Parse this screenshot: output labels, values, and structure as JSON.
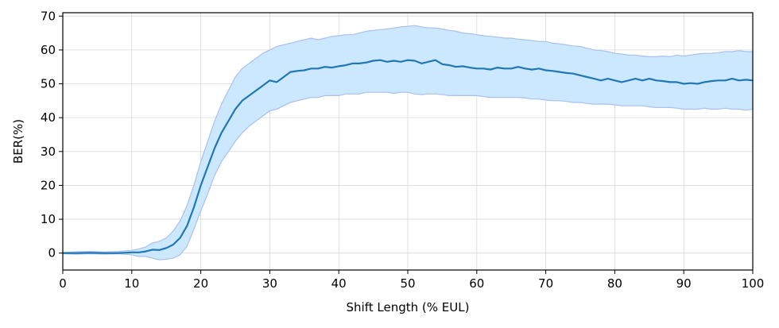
{
  "chart_data": {
    "type": "line",
    "title": "",
    "xlabel": "Shift Length (% EUL)",
    "ylabel": "BER(%)",
    "xlim": [
      0,
      100
    ],
    "ylim": [
      -5,
      71
    ],
    "xticks": [
      0,
      10,
      20,
      30,
      40,
      50,
      60,
      70,
      80,
      90,
      100
    ],
    "yticks": [
      0,
      10,
      20,
      30,
      40,
      50,
      60,
      70
    ],
    "grid": true,
    "legend": "none",
    "colors": {
      "mean_line": "#1f77b4",
      "band_fill": "#cce8ff",
      "band_edge": "#a9bff0"
    },
    "series": [
      {
        "x": [
          0,
          2,
          4,
          6,
          8,
          10,
          11,
          12,
          13,
          14,
          15,
          16,
          17,
          18,
          19,
          20,
          21,
          22,
          23,
          24,
          25,
          26,
          27,
          28,
          29,
          30,
          31,
          32,
          33,
          34,
          35,
          36,
          37,
          38,
          39,
          40,
          41,
          42,
          43,
          44,
          45,
          46,
          47,
          48,
          49,
          50,
          51,
          52,
          53,
          54,
          55,
          56,
          57,
          58,
          59,
          60,
          61,
          62,
          63,
          64,
          65,
          66,
          67,
          68,
          69,
          70,
          71,
          72,
          73,
          74,
          75,
          76,
          77,
          78,
          79,
          80,
          81,
          82,
          83,
          84,
          85,
          86,
          87,
          88,
          89,
          90,
          91,
          92,
          93,
          94,
          95,
          96,
          97,
          98,
          99,
          100
        ],
        "mean": [
          0,
          0,
          0.1,
          0,
          0,
          0.2,
          0.2,
          0.5,
          1,
          0.9,
          1.5,
          2.5,
          4.5,
          8,
          13.5,
          20,
          25.5,
          31,
          35.5,
          39,
          42.5,
          45,
          46.5,
          48,
          49.5,
          51,
          50.5,
          52,
          53.5,
          53.8,
          54,
          54.5,
          54.5,
          55,
          54.8,
          55.2,
          55.5,
          56,
          56,
          56.3,
          56.8,
          57,
          56.5,
          56.8,
          56.5,
          57,
          56.8,
          56,
          56.5,
          57,
          55.8,
          55.5,
          55,
          55.2,
          54.8,
          54.5,
          54.5,
          54.2,
          54.8,
          54.5,
          54.5,
          55,
          54.5,
          54.2,
          54.5,
          54,
          53.8,
          53.5,
          53.2,
          53,
          52.5,
          52,
          51.5,
          51,
          51.5,
          51,
          50.5,
          51,
          51.5,
          51,
          51.5,
          51,
          50.8,
          50.5,
          50.5,
          50,
          50.2,
          50,
          50.5,
          50.8,
          51,
          51,
          51.5,
          51,
          51.2,
          51
        ],
        "upper": [
          0.2,
          0.4,
          0.5,
          0.3,
          0.5,
          0.8,
          1.2,
          1.8,
          3,
          3.5,
          4.5,
          6.5,
          9.5,
          14,
          20,
          27,
          33,
          39,
          44,
          48,
          52,
          54.5,
          56,
          57.5,
          59,
          60,
          61,
          61.5,
          62,
          62.5,
          63,
          63.5,
          63,
          63.5,
          64,
          64.2,
          64.5,
          64.5,
          65,
          65.5,
          65.8,
          66,
          66.2,
          66.5,
          66.8,
          67,
          67.2,
          66.8,
          66.5,
          66.5,
          66.2,
          65.8,
          65.5,
          65,
          64.8,
          64.5,
          64.2,
          64,
          63.8,
          63.5,
          63.5,
          63.2,
          63,
          62.8,
          62.5,
          62.5,
          62,
          61.8,
          61.5,
          61.2,
          61,
          60.5,
          60,
          59.8,
          59.5,
          59,
          58.8,
          58.5,
          58.5,
          58.2,
          58,
          58,
          58.2,
          58,
          58.5,
          58.2,
          58.5,
          58.8,
          59,
          59,
          59.2,
          59.5,
          59.5,
          59.8,
          59.5,
          59.5
        ],
        "lower": [
          -0.2,
          -0.3,
          -0.2,
          -0.3,
          -0.2,
          -0.5,
          -1,
          -1,
          -1.5,
          -2,
          -1.8,
          -1.5,
          -0.5,
          2,
          7,
          12.5,
          17.5,
          23,
          27,
          30,
          33,
          35.5,
          37.5,
          39,
          40.5,
          42,
          42.5,
          43.5,
          44.5,
          45,
          45.5,
          46,
          46,
          46.5,
          46.5,
          46.5,
          47,
          47,
          47,
          47.5,
          47.5,
          47.5,
          47.5,
          47.2,
          47.5,
          47.5,
          47,
          46.8,
          47,
          47,
          46.8,
          46.5,
          46.5,
          46.5,
          46.5,
          46.5,
          46.2,
          46,
          46,
          46,
          46,
          46,
          45.8,
          45.5,
          45.5,
          45.2,
          45,
          45,
          44.8,
          44.5,
          44.5,
          44.2,
          44,
          44,
          44,
          43.8,
          43.5,
          43.5,
          43.5,
          43.5,
          43.2,
          43,
          43,
          43,
          42.8,
          42.5,
          42.5,
          42.5,
          42.8,
          42.5,
          42.5,
          42.8,
          42.5,
          42.5,
          42.2,
          42.5
        ]
      }
    ]
  }
}
